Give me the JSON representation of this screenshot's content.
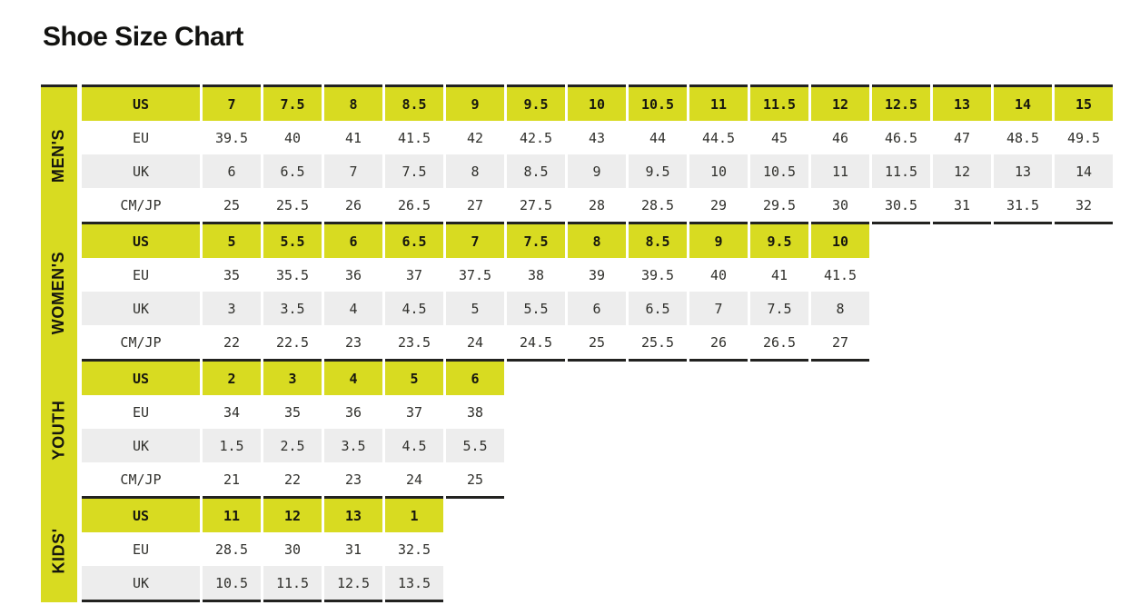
{
  "title": "Shoe Size Chart",
  "colors": {
    "accent_yellow": "#d8db21",
    "shaded_row_gray": "#ededed",
    "divider_black": "#222220",
    "value_text": "#30302c",
    "bold_text": "#15150f"
  },
  "sections": [
    {
      "id": "mens",
      "label": "MEN'S",
      "rows": [
        {
          "label": "US",
          "style": "highlight",
          "values": [
            "7",
            "7.5",
            "8",
            "8.5",
            "9",
            "9.5",
            "10",
            "10.5",
            "11",
            "11.5",
            "12",
            "12.5",
            "13",
            "14",
            "15"
          ]
        },
        {
          "label": "EU",
          "style": "plain",
          "values": [
            "39.5",
            "40",
            "41",
            "41.5",
            "42",
            "42.5",
            "43",
            "44",
            "44.5",
            "45",
            "46",
            "46.5",
            "47",
            "48.5",
            "49.5"
          ]
        },
        {
          "label": "UK",
          "style": "shade",
          "values": [
            "6",
            "6.5",
            "7",
            "7.5",
            "8",
            "8.5",
            "9",
            "9.5",
            "10",
            "10.5",
            "11",
            "11.5",
            "12",
            "13",
            "14"
          ]
        },
        {
          "label": "CM/JP",
          "style": "plain",
          "values": [
            "25",
            "25.5",
            "26",
            "26.5",
            "27",
            "27.5",
            "28",
            "28.5",
            "29",
            "29.5",
            "30",
            "30.5",
            "31",
            "31.5",
            "32"
          ]
        }
      ]
    },
    {
      "id": "womens",
      "label": "WOMEN'S",
      "rows": [
        {
          "label": "US",
          "style": "highlight",
          "values": [
            "5",
            "5.5",
            "6",
            "6.5",
            "7",
            "7.5",
            "8",
            "8.5",
            "9",
            "9.5",
            "10"
          ]
        },
        {
          "label": "EU",
          "style": "plain",
          "values": [
            "35",
            "35.5",
            "36",
            "37",
            "37.5",
            "38",
            "39",
            "39.5",
            "40",
            "41",
            "41.5"
          ]
        },
        {
          "label": "UK",
          "style": "shade",
          "values": [
            "3",
            "3.5",
            "4",
            "4.5",
            "5",
            "5.5",
            "6",
            "6.5",
            "7",
            "7.5",
            "8"
          ]
        },
        {
          "label": "CM/JP",
          "style": "plain",
          "values": [
            "22",
            "22.5",
            "23",
            "23.5",
            "24",
            "24.5",
            "25",
            "25.5",
            "26",
            "26.5",
            "27"
          ]
        }
      ]
    },
    {
      "id": "youth",
      "label": "YOUTH",
      "rows": [
        {
          "label": "US",
          "style": "highlight",
          "values": [
            "2",
            "3",
            "4",
            "5",
            "6"
          ]
        },
        {
          "label": "EU",
          "style": "plain",
          "values": [
            "34",
            "35",
            "36",
            "37",
            "38"
          ]
        },
        {
          "label": "UK",
          "style": "shade",
          "values": [
            "1.5",
            "2.5",
            "3.5",
            "4.5",
            "5.5"
          ]
        },
        {
          "label": "CM/JP",
          "style": "plain",
          "values": [
            "21",
            "22",
            "23",
            "24",
            "25"
          ]
        }
      ]
    },
    {
      "id": "kids",
      "label": "KIDS'",
      "rows": [
        {
          "label": "US",
          "style": "highlight",
          "values": [
            "11",
            "12",
            "13",
            "1"
          ]
        },
        {
          "label": "EU",
          "style": "plain",
          "values": [
            "28.5",
            "30",
            "31",
            "32.5"
          ]
        },
        {
          "label": "UK",
          "style": "shade",
          "values": [
            "10.5",
            "11.5",
            "12.5",
            "13.5"
          ]
        }
      ]
    }
  ]
}
